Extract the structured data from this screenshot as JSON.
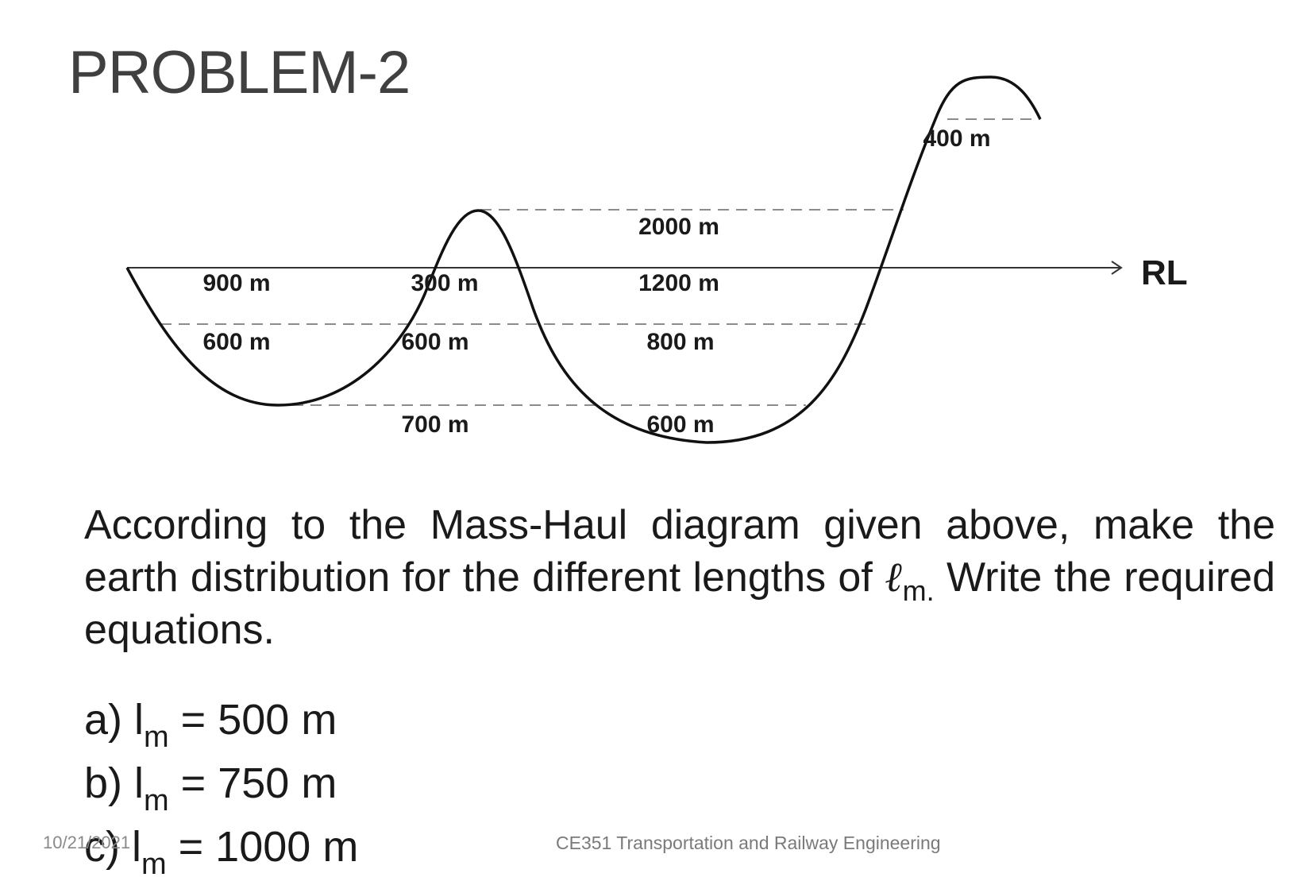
{
  "title": "PROBLEM-2",
  "diagram": {
    "reference_line_label": "RL",
    "segment_labels": {
      "top_400": "400 m",
      "dash_2000": "2000 m",
      "left_900": "900 m",
      "mid_300": "300 m",
      "right_1200": "1200 m",
      "left_600": "600 m",
      "mid_600": "600 m",
      "right_800": "800 m",
      "mid_700": "700 m",
      "bottom_600": "600 m"
    }
  },
  "question": {
    "text_before": "According to the Mass-Haul diagram given above, make the earth distribution for the different lengths of ",
    "symbol": "ℓ",
    "symbol_sub": "m.",
    "text_after": " Write the required equations."
  },
  "options": [
    {
      "prefix": "a) l",
      "sub": "m",
      "rest": " = 500 m"
    },
    {
      "prefix": "b) l",
      "sub": "m",
      "rest": " = 750 m"
    },
    {
      "prefix": "c) l",
      "sub": "m",
      "rest": " = 1000 m"
    }
  ],
  "footer": {
    "date": "10/21/2021",
    "course": "CE351 Transportation and Railway Engineering"
  }
}
